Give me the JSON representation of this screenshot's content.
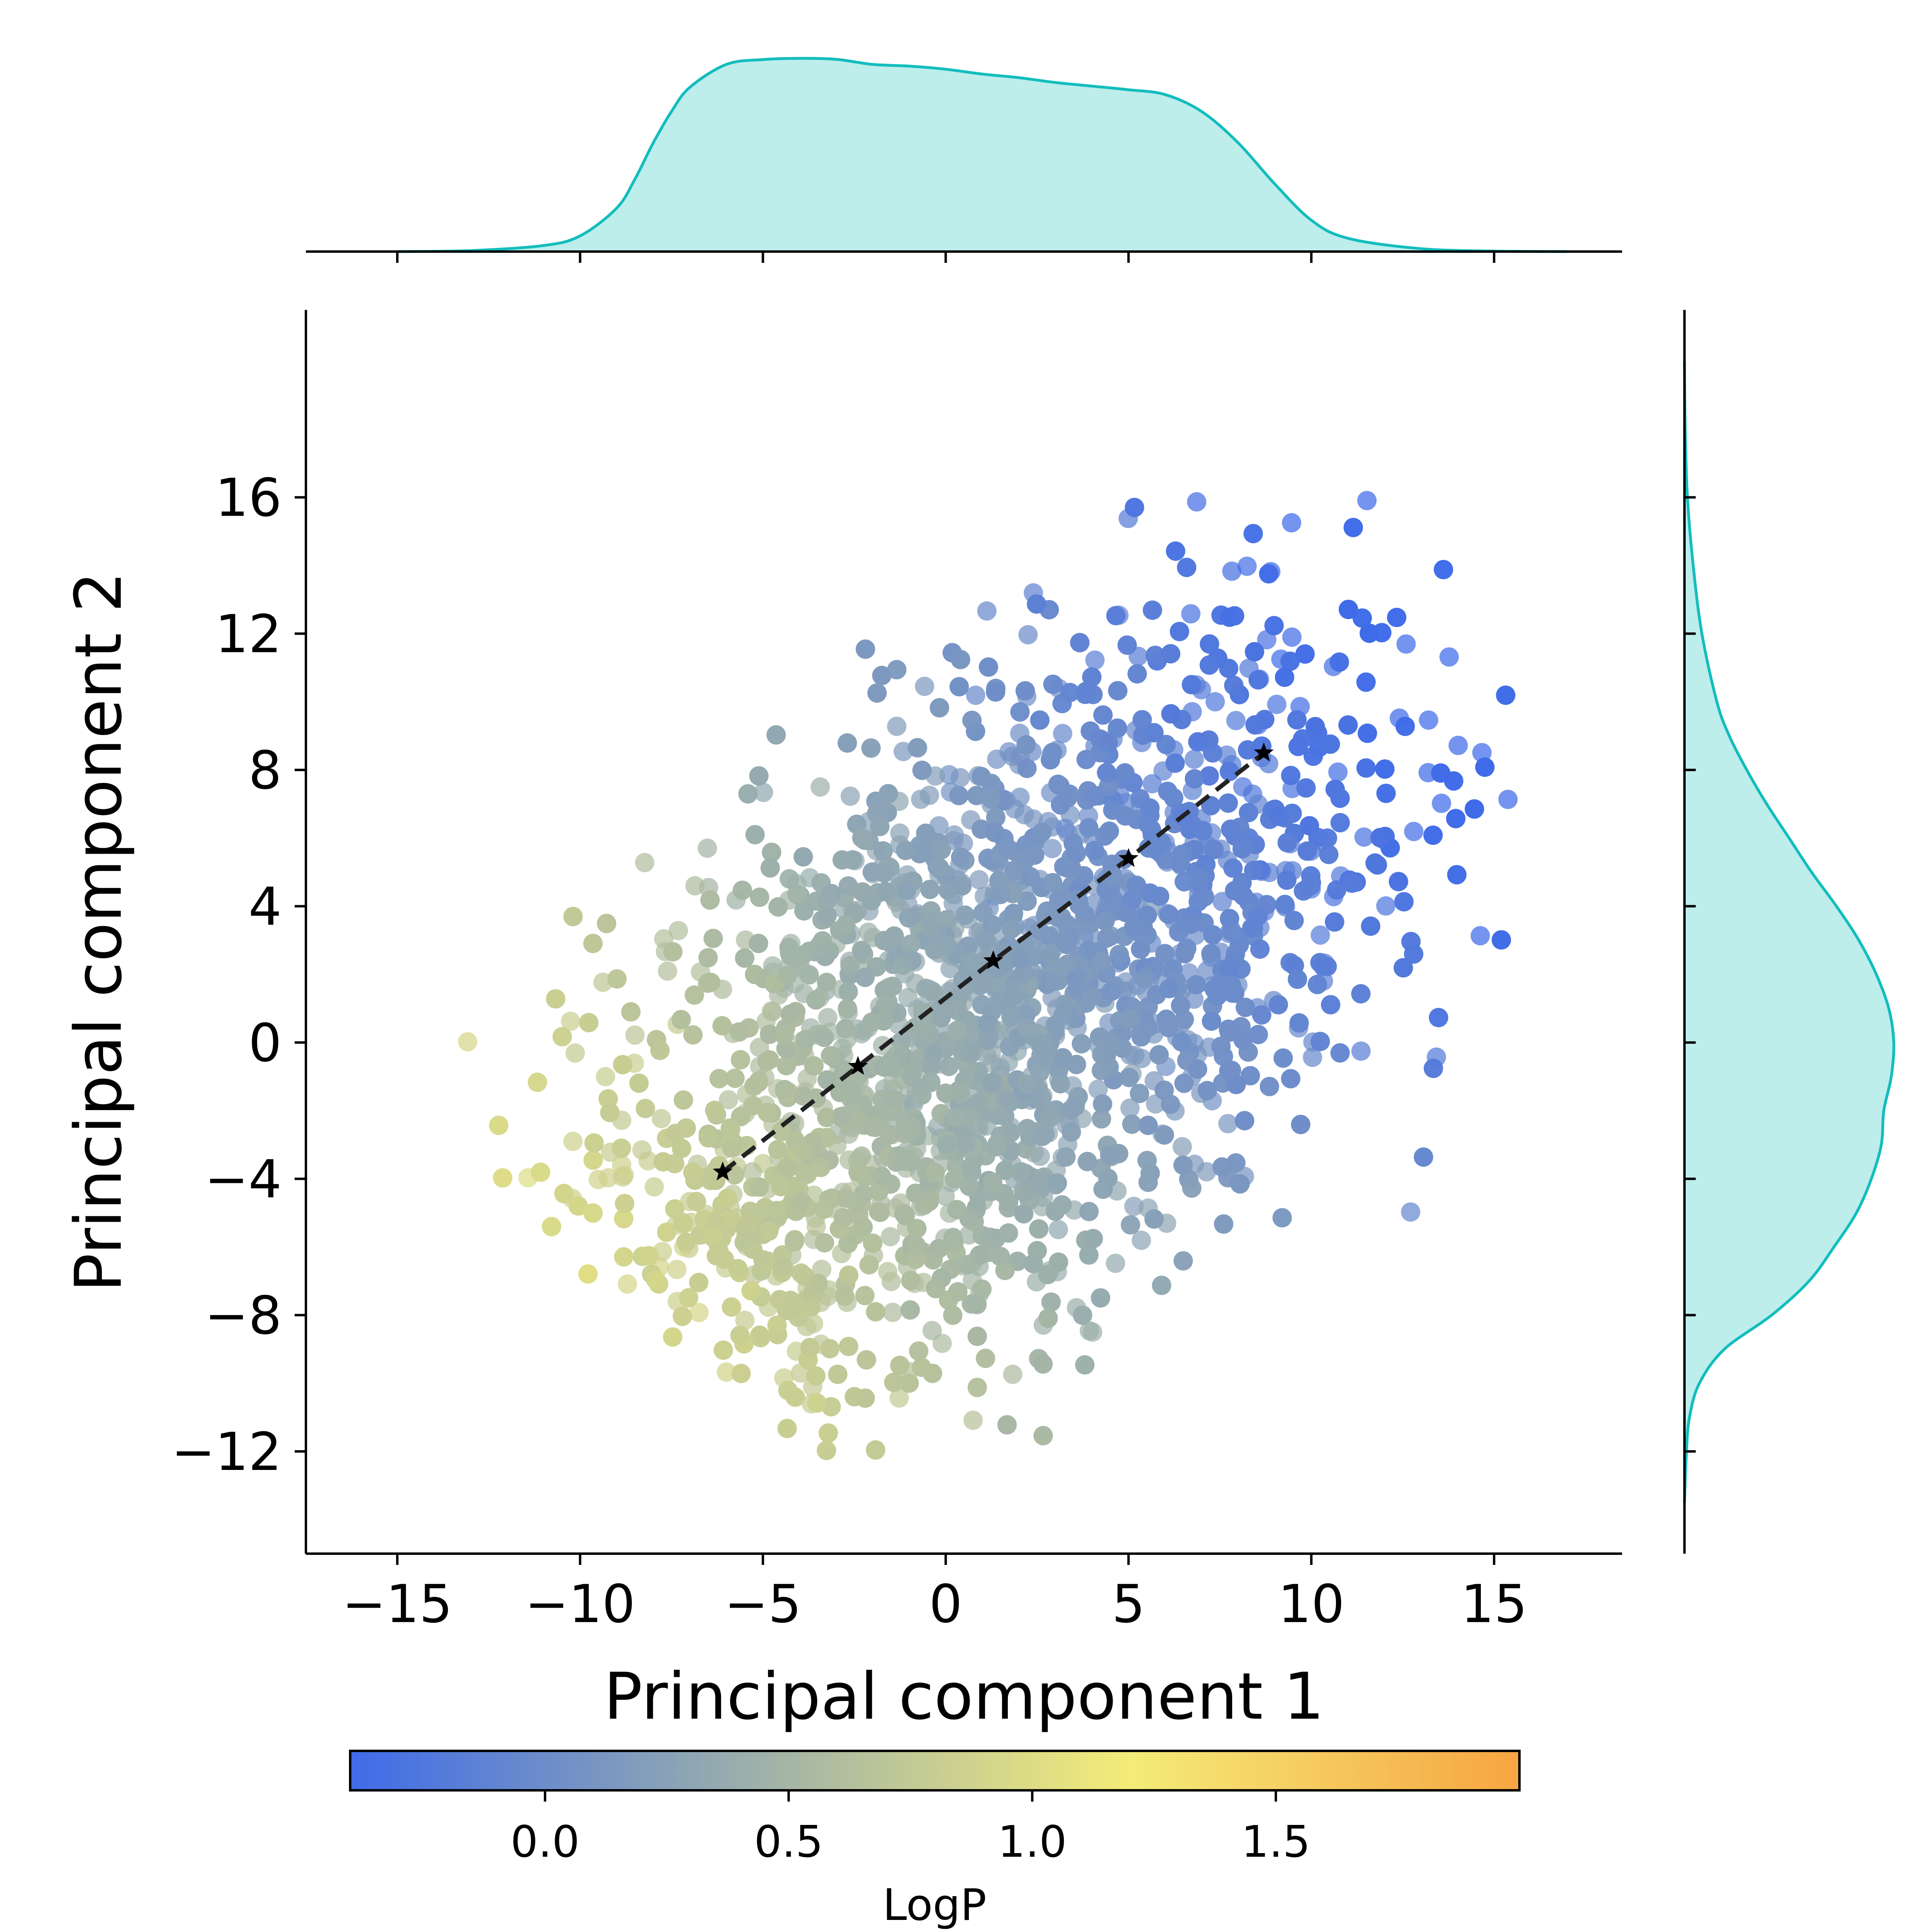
{
  "chart_data": {
    "type": "scatter",
    "xlabel": "Principal component 1",
    "ylabel": "Principal component 2",
    "xlim": [
      -17.5,
      18.5
    ],
    "ylim": [
      -15,
      21.5
    ],
    "x_ticks": [
      -15,
      -10,
      -5,
      0,
      5,
      10,
      15
    ],
    "x_tick_labels": [
      "−15",
      "−10",
      "−5",
      "0",
      "5",
      "10",
      "15"
    ],
    "y_ticks": [
      -12,
      -8,
      -4,
      0,
      4,
      8,
      12,
      16
    ],
    "y_tick_labels": [
      "−12",
      "−8",
      "−4",
      "0",
      "4",
      "8",
      "12",
      "16"
    ],
    "grid": false,
    "point_cloud": {
      "description_free": true,
      "n_points": 5200,
      "color_by": "LogP",
      "x_range": [
        -14.5,
        15.5
      ],
      "y_range": [
        -12.3,
        18.7
      ],
      "correlation": 0.45
    },
    "trajectory": {
      "style": "dashed",
      "marker": "star",
      "color": "#222222",
      "points": [
        {
          "x": -6.1,
          "y": -3.8
        },
        {
          "x": -2.4,
          "y": -0.7
        },
        {
          "x": 1.3,
          "y": 2.4
        },
        {
          "x": 5.0,
          "y": 5.4
        },
        {
          "x": 8.7,
          "y": 8.5
        }
      ]
    },
    "marginal_x": {
      "type": "kde",
      "color": "#13bdbd",
      "fill": "#bdeeec",
      "x": [
        -15.0,
        -13.0,
        -11.0,
        -10.0,
        -9.0,
        -8.5,
        -8.0,
        -7.5,
        -7.0,
        -6.0,
        -5.0,
        -4.0,
        -3.0,
        -2.0,
        -1.0,
        0.0,
        1.0,
        2.0,
        3.0,
        4.0,
        5.0,
        6.0,
        7.0,
        8.0,
        9.0,
        10.0,
        11.0,
        13.0,
        15.0,
        17.0
      ],
      "density": [
        0.0,
        0.0004,
        0.0025,
        0.0065,
        0.018,
        0.03,
        0.045,
        0.058,
        0.068,
        0.0775,
        0.0795,
        0.08,
        0.0796,
        0.0775,
        0.0768,
        0.0755,
        0.0735,
        0.072,
        0.07,
        0.0685,
        0.067,
        0.065,
        0.058,
        0.045,
        0.028,
        0.013,
        0.0055,
        0.0012,
        0.0002,
        0.0
      ]
    },
    "marginal_y": {
      "type": "kde",
      "color": "#13bdbd",
      "fill": "#bdeeec",
      "y": [
        -13.5,
        -12.0,
        -11.0,
        -10.0,
        -9.0,
        -8.0,
        -7.0,
        -6.0,
        -5.0,
        -4.0,
        -3.0,
        -2.0,
        -1.0,
        0.0,
        1.0,
        2.0,
        3.0,
        4.0,
        5.0,
        6.0,
        7.0,
        8.0,
        9.0,
        10.0,
        12.0,
        14.0,
        16.0,
        18.0,
        20.0
      ],
      "density": [
        0.0,
        0.0008,
        0.002,
        0.006,
        0.016,
        0.035,
        0.05,
        0.06,
        0.069,
        0.075,
        0.079,
        0.08,
        0.083,
        0.084,
        0.082,
        0.077,
        0.07,
        0.061,
        0.051,
        0.042,
        0.033,
        0.025,
        0.018,
        0.013,
        0.007,
        0.0035,
        0.0012,
        0.0003,
        0.0
      ]
    },
    "colorbar": {
      "label": "LogP",
      "range": [
        -0.4,
        2.0
      ],
      "ticks": [
        0.0,
        0.5,
        1.0,
        1.5
      ],
      "tick_labels": [
        "0.0",
        "0.5",
        "1.0",
        "1.5"
      ],
      "colormap": [
        "#3f6be9",
        "#9aaeac",
        "#f4ec78",
        "#f7a542"
      ],
      "orientation": "horizontal",
      "placement": "bottom"
    }
  }
}
